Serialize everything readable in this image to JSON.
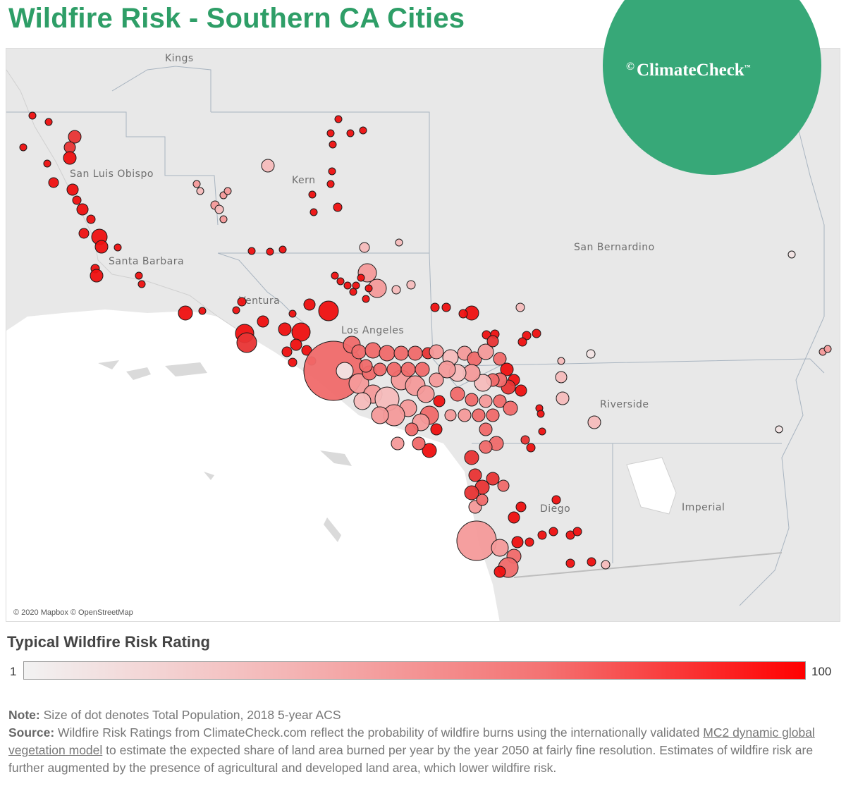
{
  "title": "Wildfire Risk - Southern CA Cities",
  "logo": {
    "name": "ClimateCheck",
    "tm": "™",
    "mark": "©"
  },
  "map": {
    "attribution": "© 2020 Mapbox © OpenStreetMap",
    "county_labels": [
      "Kings",
      "San Luis Obispo",
      "Kern",
      "Santa Barbara",
      "Ventura",
      "Los Angeles",
      "San Bernardino",
      "Riverside",
      "Imperial",
      "Diego"
    ]
  },
  "legend": {
    "title": "Typical Wildfire Risk Rating",
    "min": "1",
    "max": "100",
    "min_value": 1,
    "max_value": 100,
    "colors": [
      "#f2f2f2",
      "#f4b6b6",
      "#f47272",
      "#ff0000"
    ]
  },
  "notes": {
    "note_label": "Note:",
    "note_text": " Size of dot denotes Total Population, 2018 5-year ACS",
    "source_label": "Source:",
    "source_text_1": "  Wildfire Risk Ratings from ClimateCheck.com reflect the probability of wildfire burns using the internationally validated ",
    "source_link": "MC2 dynamic global vegetation model",
    "source_text_2": " to estimate the expected share of land area burned per year by the year 2050 at fairly fine resolution. Estimates of wildfire risk are further augmented by the presence of agricultural and developed land area, which lower wildfire risk."
  }
}
